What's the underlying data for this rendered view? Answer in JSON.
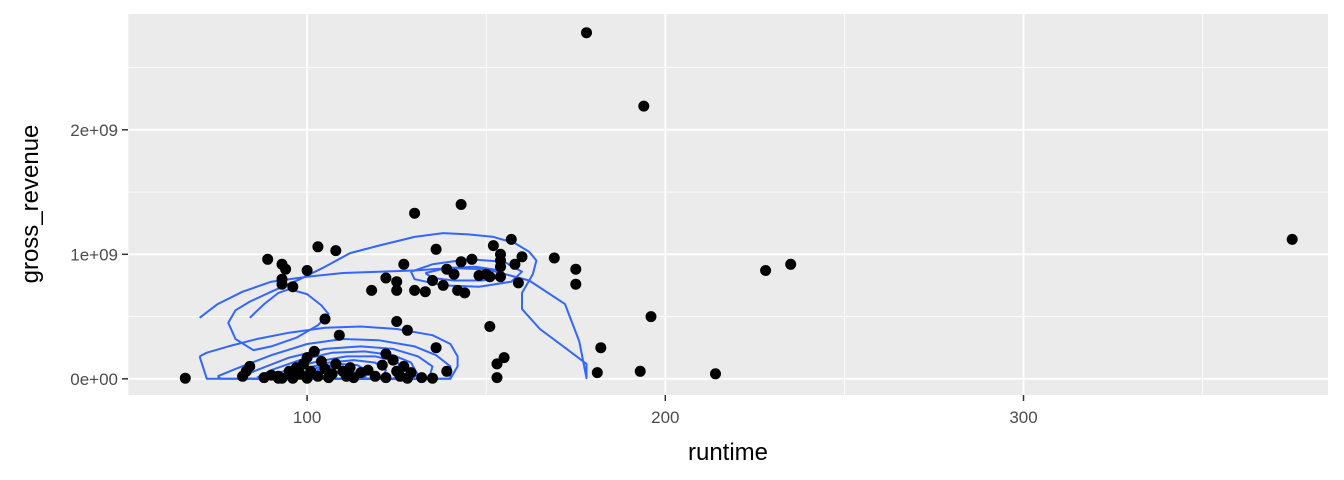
{
  "chart_data": {
    "type": "scatter",
    "title": "",
    "xlabel": "runtime",
    "ylabel": "gross_revenue",
    "xlim": [
      50,
      385
    ],
    "ylim": [
      -130000000,
      2930000000
    ],
    "x_ticks": [
      100,
      200,
      300
    ],
    "x_tick_labels": [
      "100",
      "200",
      "300"
    ],
    "y_ticks": [
      0,
      1000000000,
      2000000000
    ],
    "y_tick_labels": [
      "0e+00",
      "1e+09",
      "2e+09"
    ],
    "grid": true,
    "legend": "none",
    "colors": {
      "panel": "#ebebeb",
      "grid": "#ffffff",
      "points": "#000000",
      "contour": "#3366ff"
    },
    "series": [
      {
        "type": "points",
        "points": [
          [
            178,
            2780000000
          ],
          [
            194,
            2190000000
          ],
          [
            375,
            1120000000
          ],
          [
            143,
            1400000000
          ],
          [
            130,
            1330000000
          ],
          [
            103,
            1060000000
          ],
          [
            108,
            1030000000
          ],
          [
            136,
            1040000000
          ],
          [
            157,
            1120000000
          ],
          [
            152,
            1070000000
          ],
          [
            89,
            960000000
          ],
          [
            93,
            920000000
          ],
          [
            94,
            880000000
          ],
          [
            100,
            870000000
          ],
          [
            93,
            800000000
          ],
          [
            93,
            760000000
          ],
          [
            96,
            740000000
          ],
          [
            118,
            710000000
          ],
          [
            122,
            810000000
          ],
          [
            125,
            780000000
          ],
          [
            125,
            710000000
          ],
          [
            127,
            920000000
          ],
          [
            130,
            710000000
          ],
          [
            133,
            700000000
          ],
          [
            135,
            790000000
          ],
          [
            138,
            750000000
          ],
          [
            139,
            880000000
          ],
          [
            141,
            840000000
          ],
          [
            142,
            710000000
          ],
          [
            143,
            940000000
          ],
          [
            144,
            690000000
          ],
          [
            146,
            960000000
          ],
          [
            148,
            830000000
          ],
          [
            150,
            840000000
          ],
          [
            151,
            820000000
          ],
          [
            154,
            900000000
          ],
          [
            154,
            950000000
          ],
          [
            154,
            820000000
          ],
          [
            154,
            1000000000
          ],
          [
            158,
            920000000
          ],
          [
            159,
            770000000
          ],
          [
            160,
            980000000
          ],
          [
            169,
            970000000
          ],
          [
            175,
            880000000
          ],
          [
            175,
            760000000
          ],
          [
            228,
            870000000
          ],
          [
            235,
            920000000
          ],
          [
            196,
            500000000
          ],
          [
            182,
            250000000
          ],
          [
            181,
            50000000
          ],
          [
            193,
            60000000
          ],
          [
            214,
            40000000
          ],
          [
            151,
            420000000
          ],
          [
            155,
            170000000
          ],
          [
            153,
            120000000
          ],
          [
            153,
            10000000
          ],
          [
            105,
            480000000
          ],
          [
            109,
            350000000
          ],
          [
            125,
            460000000
          ],
          [
            128,
            390000000
          ],
          [
            136,
            250000000
          ],
          [
            139,
            60000000
          ],
          [
            66,
            5000000
          ],
          [
            82,
            20000000
          ],
          [
            83,
            60000000
          ],
          [
            84,
            100000000
          ],
          [
            88,
            10000000
          ],
          [
            90,
            30000000
          ],
          [
            92,
            20000000
          ],
          [
            93,
            5000000
          ],
          [
            95,
            60000000
          ],
          [
            96,
            20000000
          ],
          [
            97,
            90000000
          ],
          [
            98,
            40000000
          ],
          [
            99,
            120000000
          ],
          [
            100,
            5000000
          ],
          [
            100,
            170000000
          ],
          [
            101,
            60000000
          ],
          [
            102,
            220000000
          ],
          [
            103,
            20000000
          ],
          [
            104,
            140000000
          ],
          [
            105,
            80000000
          ],
          [
            106,
            10000000
          ],
          [
            107,
            40000000
          ],
          [
            108,
            120000000
          ],
          [
            110,
            60000000
          ],
          [
            111,
            20000000
          ],
          [
            112,
            90000000
          ],
          [
            113,
            10000000
          ],
          [
            115,
            50000000
          ],
          [
            117,
            70000000
          ],
          [
            119,
            20000000
          ],
          [
            121,
            110000000
          ],
          [
            122,
            10000000
          ],
          [
            122,
            200000000
          ],
          [
            124,
            150000000
          ],
          [
            125,
            60000000
          ],
          [
            126,
            20000000
          ],
          [
            127,
            100000000
          ],
          [
            128,
            5000000
          ],
          [
            129,
            50000000
          ],
          [
            132,
            10000000
          ],
          [
            135,
            5000000
          ],
          [
            92,
            5000000
          ],
          [
            96,
            5000000
          ]
        ]
      },
      {
        "type": "density_contour",
        "levels": [
          {
            "x": [
              70,
              72,
              78,
              86,
              95,
              105,
              115,
              125,
              135,
              140,
              142,
              142,
              140,
              128,
              114,
              98,
              82,
              72,
              70
            ],
            "y": [
              180000000,
              210000000,
              260000000,
              320000000,
              370000000,
              410000000,
              420000000,
              400000000,
              350000000,
              280000000,
              180000000,
              100000000,
              0,
              0,
              0,
              0,
              0,
              0,
              180000000
            ]
          },
          {
            "x": [
              75,
              80,
              90,
              100,
              110,
              120,
              130,
              136,
              140,
              140,
              136,
              125,
              110,
              95,
              82,
              76,
              75
            ],
            "y": [
              20000000,
              80000000,
              190000000,
              280000000,
              320000000,
              310000000,
              260000000,
              190000000,
              100000000,
              0,
              0,
              0,
              0,
              0,
              0,
              0,
              20000000
            ]
          },
          {
            "x": [
              81,
              86,
              95,
              105,
              115,
              124,
              131,
              135,
              134,
              128,
              115,
              100,
              88,
              82,
              81
            ],
            "y": [
              10000000,
              70000000,
              170000000,
              240000000,
              260000000,
              240000000,
              180000000,
              100000000,
              0,
              0,
              0,
              0,
              0,
              0,
              10000000
            ]
          },
          {
            "x": [
              86,
              90,
              98,
              107,
              116,
              124,
              129,
              131,
              128,
              116,
              102,
              90,
              86
            ],
            "y": [
              10000000,
              70000000,
              150000000,
              210000000,
              220000000,
              190000000,
              130000000,
              30000000,
              0,
              0,
              0,
              0,
              10000000
            ]
          },
          {
            "x": [
              90,
              95,
              103,
              111,
              119,
              125,
              127,
              124,
              114,
              101,
              92,
              90
            ],
            "y": [
              20000000,
              80000000,
              140000000,
              180000000,
              180000000,
              140000000,
              60000000,
              0,
              0,
              0,
              0,
              20000000
            ]
          },
          {
            "x": [
              94,
              99,
              106,
              113,
              119,
              122,
              121,
              112,
              101,
              95,
              94
            ],
            "y": [
              20000000,
              80000000,
              130000000,
              150000000,
              130000000,
              70000000,
              0,
              0,
              0,
              0,
              20000000
            ]
          },
          {
            "x": [
              97,
              103,
              109,
              114,
              117,
              116,
              109,
              101,
              97
            ],
            "y": [
              30000000,
              90000000,
              120000000,
              110000000,
              60000000,
              0,
              0,
              0,
              30000000
            ]
          },
          {
            "x": [
              100,
              105,
              110,
              113,
              112,
              106,
              101,
              100
            ],
            "y": [
              40000000,
              90000000,
              100000000,
              60000000,
              0,
              0,
              0,
              40000000
            ]
          },
          {
            "x": [
              84,
              88,
              92,
              95,
              100,
              104,
              106,
              103,
              97,
              90,
              85,
              80,
              78,
              80,
              84,
              90,
              98,
              105,
              112,
              120,
              130,
              138,
              145,
              152,
              158,
              162,
              164,
              163,
              160,
              160,
              165,
              172,
              178,
              178,
              176,
              172,
              162,
              150,
              140,
              130,
              120,
              110,
              100,
              90,
              82,
              75,
              70
            ],
            "y": [
              490000000,
              600000000,
              690000000,
              720000000,
              680000000,
              590000000,
              520000000,
              430000000,
              330000000,
              260000000,
              230000000,
              320000000,
              450000000,
              550000000,
              620000000,
              700000000,
              800000000,
              900000000,
              1010000000,
              1070000000,
              1140000000,
              1170000000,
              1160000000,
              1140000000,
              1090000000,
              1020000000,
              950000000,
              840000000,
              690000000,
              560000000,
              400000000,
              250000000,
              120000000,
              5000000,
              300000000,
              600000000,
              790000000,
              880000000,
              890000000,
              870000000,
              860000000,
              850000000,
              820000000,
              780000000,
              700000000,
              600000000,
              490000000
            ]
          },
          {
            "x": [
              129,
              135,
              145,
              155,
              160,
              157,
              148,
              138,
              130,
              129
            ],
            "y": [
              860000000,
              920000000,
              960000000,
              940000000,
              860000000,
              780000000,
              740000000,
              750000000,
              800000000,
              860000000
            ]
          },
          {
            "x": [
              133,
              139,
              147,
              154,
              155,
              149,
              141,
              135,
              133
            ],
            "y": [
              850000000,
              890000000,
              900000000,
              870000000,
              820000000,
              790000000,
              790000000,
              810000000,
              850000000
            ]
          }
        ]
      }
    ]
  }
}
